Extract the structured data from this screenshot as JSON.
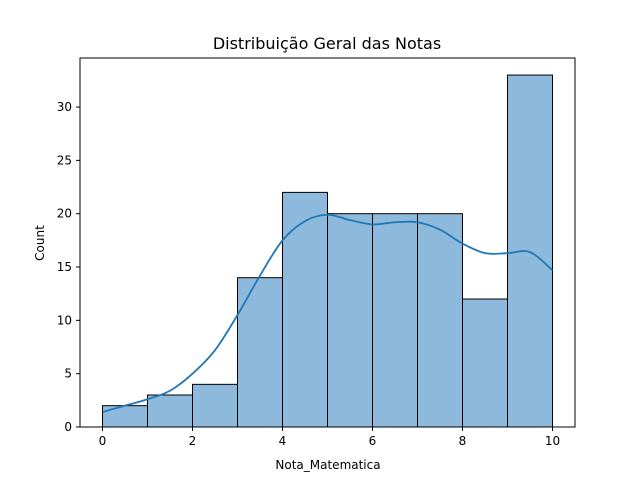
{
  "chart_data": {
    "type": "bar",
    "title": "Distribuição Geral das Notas",
    "xlabel": "Nota_Matematica",
    "ylabel": "Count",
    "xlim": [
      -0.5,
      10.5
    ],
    "ylim": [
      0,
      34.6
    ],
    "xticks": [
      0,
      2,
      4,
      6,
      8,
      10
    ],
    "yticks": [
      0,
      5,
      10,
      15,
      20,
      25,
      30
    ],
    "bin_edges": [
      0,
      1,
      2,
      3,
      4,
      5,
      6,
      7,
      8,
      9,
      10
    ],
    "counts": [
      2,
      3,
      4,
      14,
      22,
      20,
      20,
      20,
      12,
      33
    ],
    "kde": {
      "x": [
        0,
        0.5,
        1,
        1.5,
        2,
        2.5,
        3,
        3.5,
        4,
        4.5,
        5,
        5.5,
        6,
        6.5,
        7,
        7.5,
        8,
        8.5,
        9,
        9.5,
        10
      ],
      "y": [
        1.4,
        2.0,
        2.6,
        3.4,
        5.0,
        7.2,
        10.5,
        14.2,
        17.5,
        19.3,
        19.9,
        19.4,
        19.0,
        19.2,
        19.2,
        18.5,
        17.2,
        16.3,
        16.3,
        16.4,
        14.7
      ]
    },
    "colors": {
      "bar_fill": "#8dbadc",
      "bar_edge": "#000000",
      "kde_line": "#1f77b4"
    },
    "grid": false,
    "legend": "none"
  }
}
